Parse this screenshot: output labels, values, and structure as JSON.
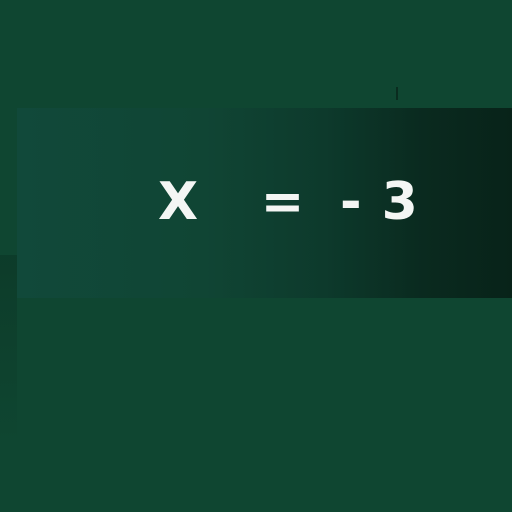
{
  "equation": {
    "variable": "X",
    "operator": "=",
    "value": "- 3"
  },
  "colors": {
    "background": "#0f4631",
    "banner_start": "#11493a",
    "banner_end": "#082319",
    "text": "#f4f6f4"
  }
}
